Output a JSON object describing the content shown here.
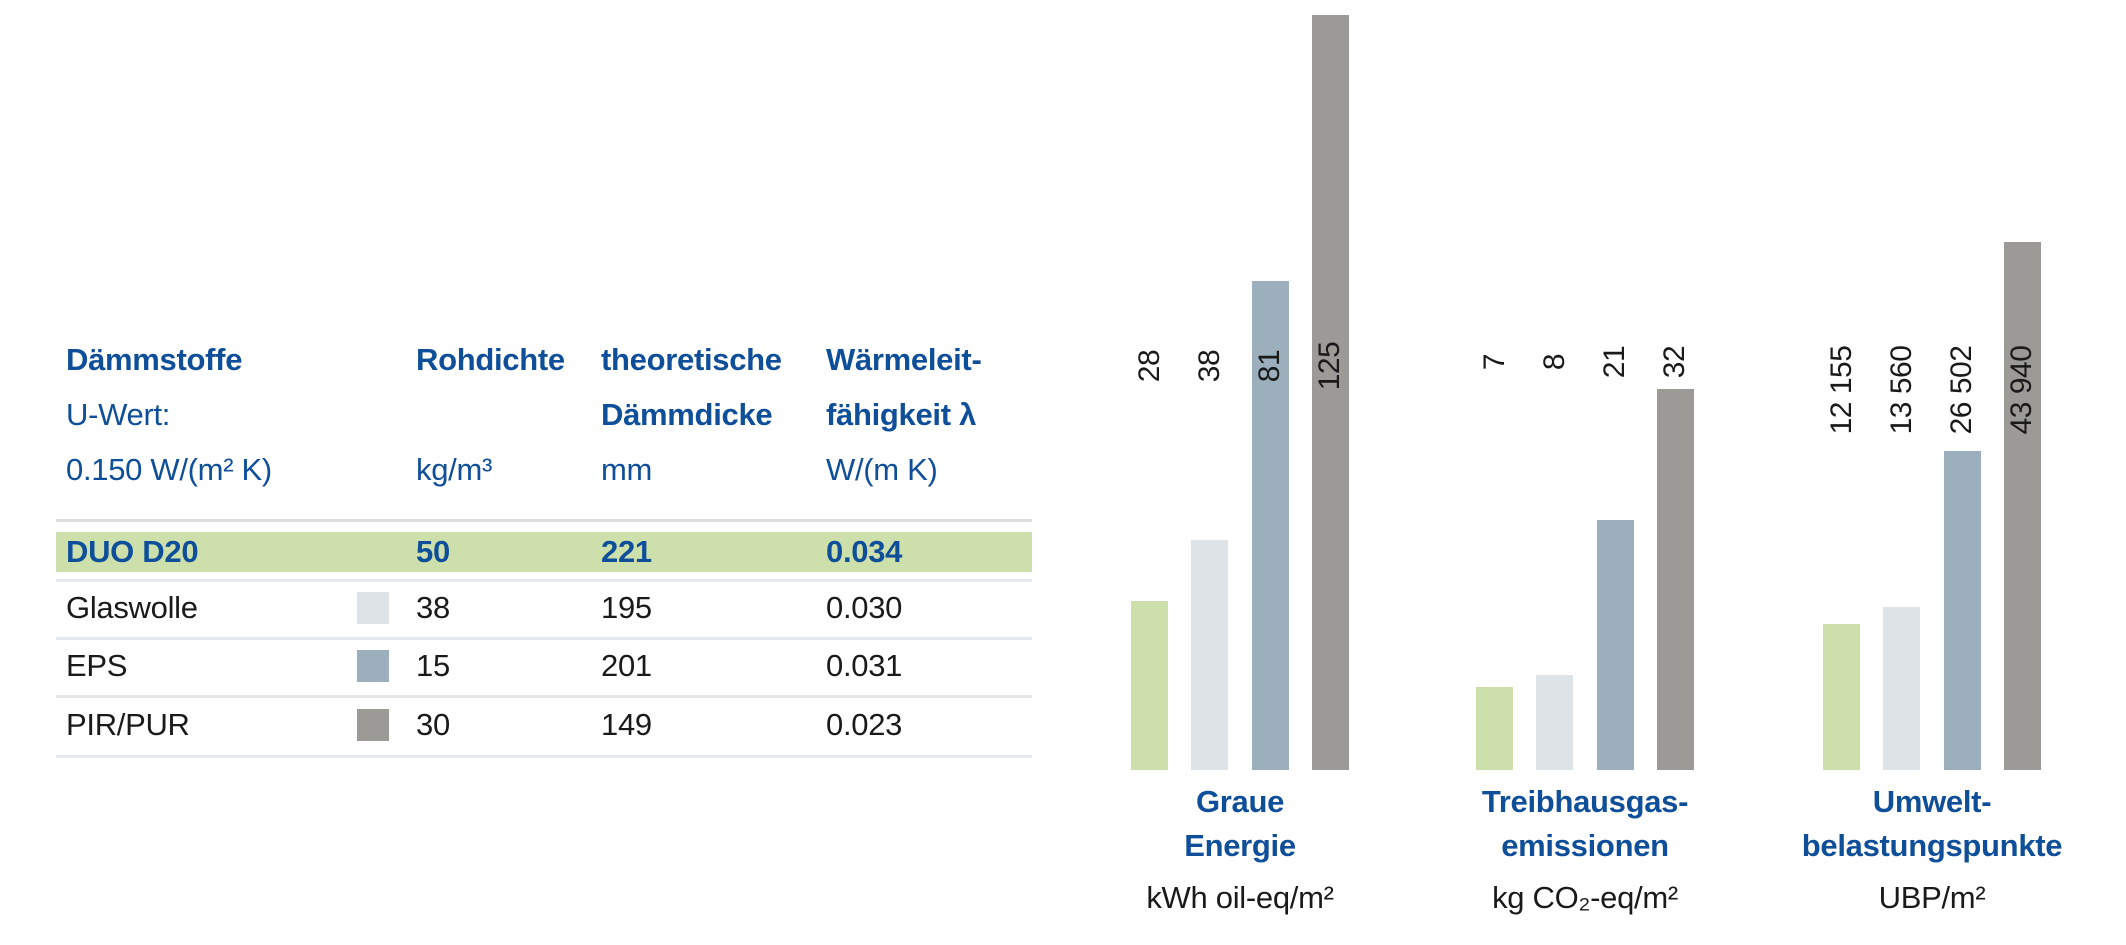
{
  "colors": {
    "brand_blue": "#0f4f9a",
    "text_black": "#1a1a1a",
    "highlight_green": "#cde0ac",
    "glaswolle_gray": "#dde3e7",
    "eps_bluegray": "#9cafbc",
    "pirpur_gray": "#9c9a97",
    "divider_gray": "#e4e8eb"
  },
  "table": {
    "header": {
      "col1_line1": "Dämmstoffe",
      "col1_line2": "U-Wert:",
      "col1_line3": "0.150 W/(m² K)",
      "col2_line1": "Rohdichte",
      "col2_line2": "",
      "col2_line3": "kg/m³",
      "col3_line1": "theoretische",
      "col3_line2": "Dämmdicke",
      "col3_line3": "mm",
      "col4_line1": "Wärmeleit-",
      "col4_line2": "fähigkeit λ",
      "col4_line3": "W/(m K)"
    },
    "rows": [
      {
        "name": "DUO D20",
        "rohdichte": "50",
        "daemmdicke": "221",
        "lambda": "0.034",
        "highlight": true,
        "swatch_key": "highlight_green"
      },
      {
        "name": "Glaswolle",
        "rohdichte": "38",
        "daemmdicke": "195",
        "lambda": "0.030",
        "highlight": false,
        "swatch_key": "glaswolle_gray"
      },
      {
        "name": "EPS",
        "rohdichte": "15",
        "daemmdicke": "201",
        "lambda": "0.031",
        "highlight": false,
        "swatch_key": "eps_bluegray"
      },
      {
        "name": "PIR/PUR",
        "rohdichte": "30",
        "daemmdicke": "149",
        "lambda": "0.023",
        "highlight": false,
        "swatch_key": "pirpur_gray"
      }
    ]
  },
  "chart_data": [
    {
      "type": "bar",
      "title": "Graue Energie",
      "title_line1": "Graue",
      "title_line2": "Energie",
      "unit": "kWh oil-eq/m²",
      "categories": [
        "DUO D20",
        "Glaswolle",
        "EPS",
        "PIR/PUR"
      ],
      "values": [
        28,
        38,
        81,
        125
      ],
      "value_labels": [
        "28",
        "38",
        "81",
        "125"
      ],
      "bar_colors": [
        "#cde0ac",
        "#dde3e7",
        "#9cafbc",
        "#9c9a97"
      ],
      "orientation": "vertical",
      "value_label_rotated": true,
      "ylim": [
        0,
        125
      ],
      "grid": false,
      "legend": false
    },
    {
      "type": "bar",
      "title": "Treibhausgas-emissionen",
      "title_line1": "Treibhausgas-",
      "title_line2": "emissionen",
      "unit": "kg CO₂-eq/m²",
      "categories": [
        "DUO D20",
        "Glaswolle",
        "EPS",
        "PIR/PUR"
      ],
      "values": [
        7,
        8,
        21,
        32
      ],
      "value_labels": [
        "7",
        "8",
        "21",
        "32"
      ],
      "bar_colors": [
        "#cde0ac",
        "#dde3e7",
        "#9cafbc",
        "#9c9a97"
      ],
      "orientation": "vertical",
      "value_label_rotated": true,
      "ylim": [
        0,
        32
      ],
      "grid": false,
      "legend": false
    },
    {
      "type": "bar",
      "title": "Umwelt-belastungspunkte",
      "title_line1": "Umwelt-",
      "title_line2": "belastungspunkte",
      "unit": "UBP/m²",
      "categories": [
        "DUO D20",
        "Glaswolle",
        "EPS",
        "PIR/PUR"
      ],
      "values": [
        12155,
        13560,
        26502,
        43940
      ],
      "value_labels": [
        "12 155",
        "13 560",
        "26 502",
        "43 940"
      ],
      "bar_colors": [
        "#cde0ac",
        "#dde3e7",
        "#9cafbc",
        "#9c9a97"
      ],
      "orientation": "vertical",
      "value_label_rotated": true,
      "ylim": [
        0,
        43940
      ],
      "grid": false,
      "legend": false
    }
  ]
}
